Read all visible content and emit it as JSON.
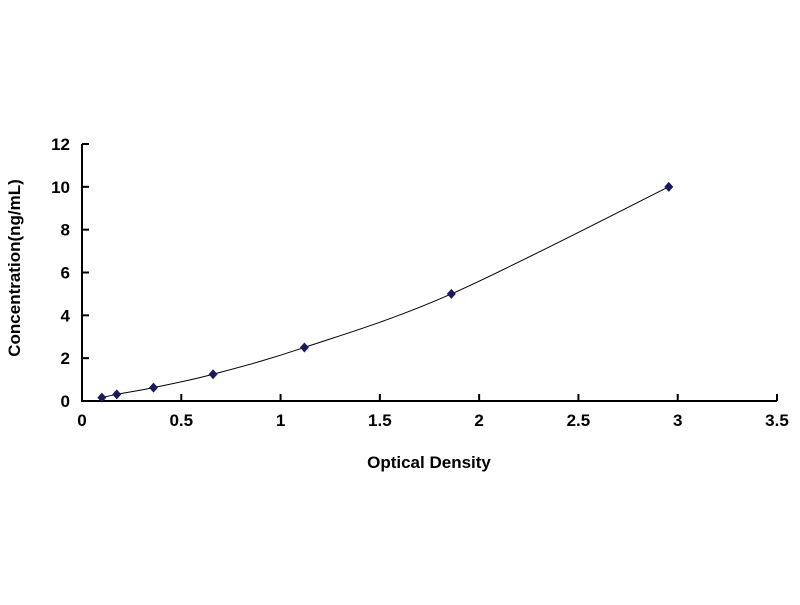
{
  "chart_data": {
    "type": "scatter",
    "title": "",
    "xlabel": "Optical Density",
    "ylabel": "Concentration(ng/mL)",
    "xlim": [
      0,
      3.5
    ],
    "ylim": [
      0,
      12
    ],
    "xticks": [
      "0",
      "0.5",
      "1",
      "1.5",
      "2",
      "2.5",
      "3",
      "3.5"
    ],
    "yticks": [
      "0",
      "2",
      "4",
      "6",
      "8",
      "10",
      "12"
    ],
    "grid": false,
    "trendline": "smooth curve fit",
    "marker": "diamond",
    "color": "#1a1a5e",
    "series": [
      {
        "x": [
          0.1,
          0.175,
          0.36,
          0.66,
          1.12,
          1.86,
          2.955
        ],
        "y": [
          0.156,
          0.312,
          0.625,
          1.25,
          2.5,
          5,
          10
        ]
      }
    ]
  }
}
